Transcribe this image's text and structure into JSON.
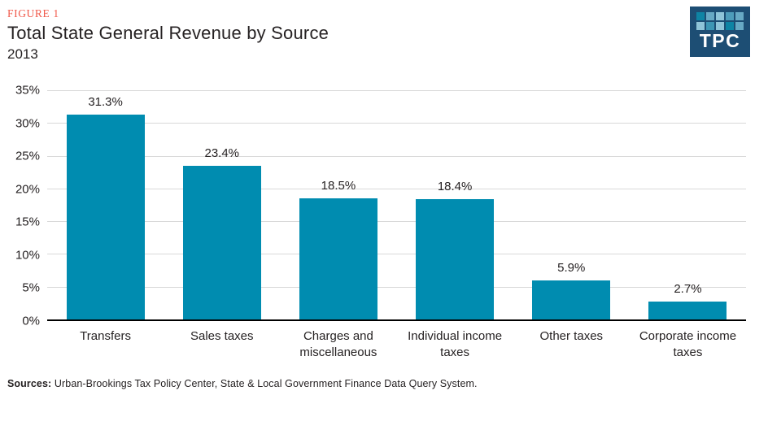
{
  "header": {
    "figure_label": "FIGURE 1",
    "title": "Total State General Revenue by Source",
    "subtitle": "2013",
    "logo": {
      "text": "TPC",
      "background": "#1d4e74",
      "grid_colors": [
        [
          "#0e84a4",
          "#67a9c4",
          "#8ec4d8",
          "#4d9cba",
          "#67a9c4"
        ],
        [
          "#8ec4d8",
          "#3d96b4",
          "#8ec4d8",
          "#0e84a4",
          "#67a9c4"
        ]
      ]
    }
  },
  "chart_data": {
    "type": "bar",
    "title": "Total State General Revenue by Source",
    "subtitle": "2013",
    "categories": [
      "Transfers",
      "Sales taxes",
      "Charges and miscellaneous",
      "Individual income taxes",
      "Other taxes",
      "Corporate income taxes"
    ],
    "values": [
      31.3,
      23.4,
      18.5,
      18.4,
      5.9,
      2.7
    ],
    "value_labels": [
      "31.3%",
      "23.4%",
      "18.5%",
      "18.4%",
      "5.9%",
      "2.7%"
    ],
    "xlabel": "",
    "ylabel": "",
    "ylim": [
      0,
      35
    ],
    "ytick_step": 5,
    "ytick_labels": [
      "0%",
      "5%",
      "10%",
      "15%",
      "20%",
      "25%",
      "30%",
      "35%"
    ],
    "grid": true,
    "legend": false,
    "bar_color": "#008cb0"
  },
  "footer": {
    "sources_label": "Sources:",
    "sources_text": "Urban-Brookings Tax Policy Center, State & Local Government Finance Data Query System."
  },
  "colors": {
    "figure_label": "#f0594a",
    "bar": "#008cb0",
    "text": "#262223",
    "gridline": "#d9d9d9",
    "axis": "#000000",
    "logo_bg": "#1d4e74"
  }
}
